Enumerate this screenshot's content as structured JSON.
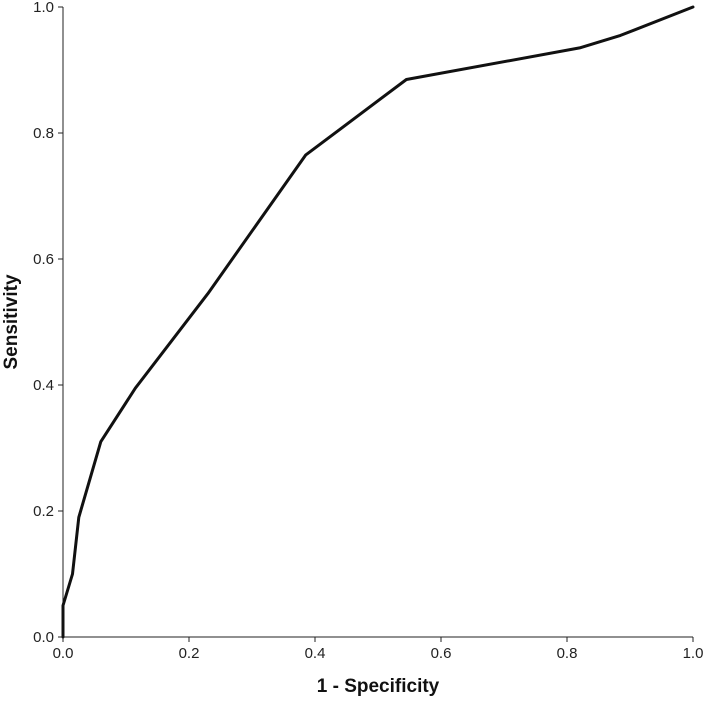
{
  "chart_data": {
    "type": "line",
    "title": "",
    "xlabel": "1 - Specificity",
    "ylabel": "Sensitivity",
    "xlim": [
      0,
      1
    ],
    "ylim": [
      0,
      1
    ],
    "x_ticks": [
      "0.0",
      "0.2",
      "0.4",
      "0.6",
      "0.8",
      "1.0"
    ],
    "y_ticks": [
      "0.0",
      "0.2",
      "0.4",
      "0.6",
      "0.8",
      "1.0"
    ],
    "grid": false,
    "legend": "none",
    "series": [
      {
        "color": "#111111",
        "x": [
          0.0,
          0.0,
          0.015,
          0.025,
          0.06,
          0.115,
          0.23,
          0.385,
          0.545,
          0.82,
          0.885,
          1.0
        ],
        "y": [
          0.0,
          0.05,
          0.1,
          0.19,
          0.31,
          0.395,
          0.545,
          0.765,
          0.885,
          0.935,
          0.955,
          1.0
        ]
      }
    ]
  }
}
